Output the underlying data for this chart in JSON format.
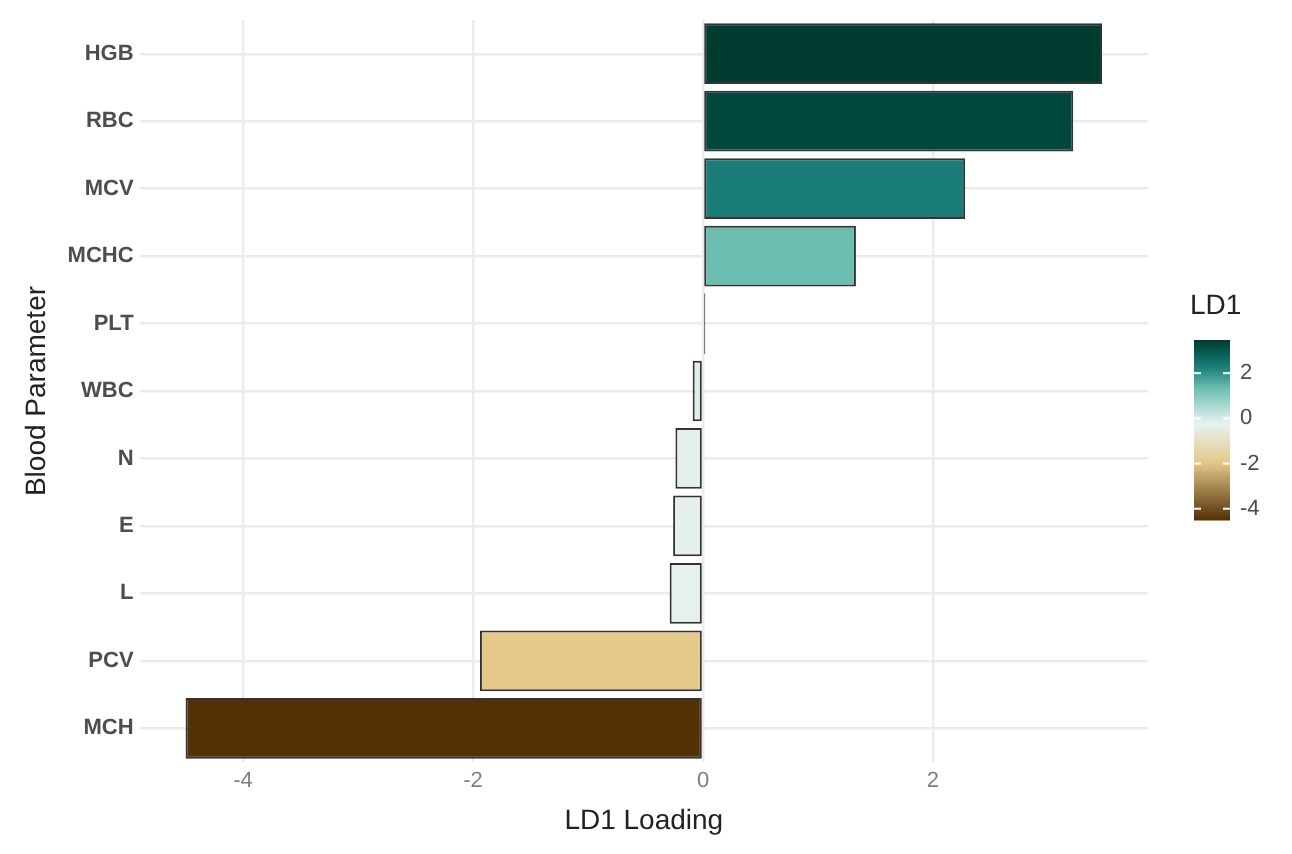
{
  "chart_data": {
    "type": "bar",
    "orientation": "horizontal",
    "xlabel": "LD1 Loading",
    "ylabel": "Blood Parameter",
    "clabel": "LD1",
    "categories": [
      "HGB",
      "RBC",
      "MCV",
      "MCHC",
      "PLT",
      "WBC",
      "N",
      "E",
      "L",
      "PCV",
      "MCH"
    ],
    "values": [
      3.47,
      3.22,
      2.28,
      1.33,
      0.02,
      -0.09,
      -0.24,
      -0.26,
      -0.29,
      -1.94,
      -4.5
    ],
    "colors": [
      "#003c30",
      "#01493f",
      "#1b7d77",
      "#6bbdb2",
      "#333333",
      "#dceeea",
      "#e5f0ed",
      "#e5f0ed",
      "#e6f1ee",
      "#e5c98b",
      "#543005"
    ],
    "xlim": [
      -4.9,
      3.87
    ],
    "xticks": [
      -4,
      -2,
      0,
      2
    ],
    "clim": [
      -4.5,
      3.47
    ],
    "cticks": [
      -4,
      -2,
      0,
      2
    ],
    "grid": true
  }
}
